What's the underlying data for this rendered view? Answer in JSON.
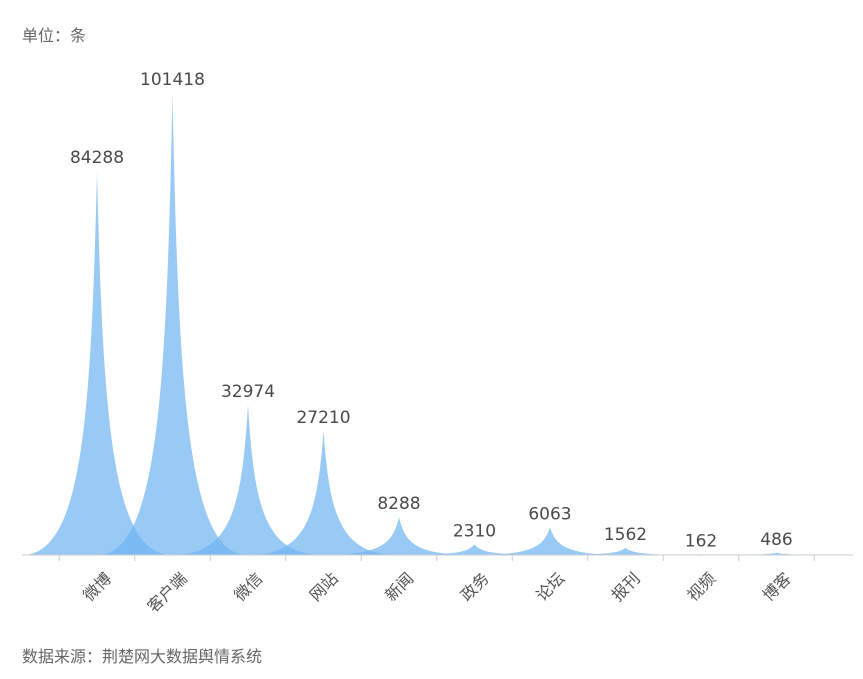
{
  "unit_label": "单位：条",
  "source_label": "数据来源：荆楚网大数据舆情系统",
  "colors": {
    "fill": "#6db3f2",
    "axis": "#cccccc",
    "text": "#4a4a4a"
  },
  "chart_data": {
    "type": "area",
    "categories": [
      "微博",
      "客户端",
      "微信",
      "网站",
      "新闻",
      "政务",
      "论坛",
      "报刊",
      "视频",
      "博客"
    ],
    "values": [
      84288,
      101418,
      32974,
      27210,
      8288,
      2310,
      6063,
      1562,
      162,
      486
    ],
    "ylim": [
      0,
      101418
    ],
    "grid": false
  }
}
